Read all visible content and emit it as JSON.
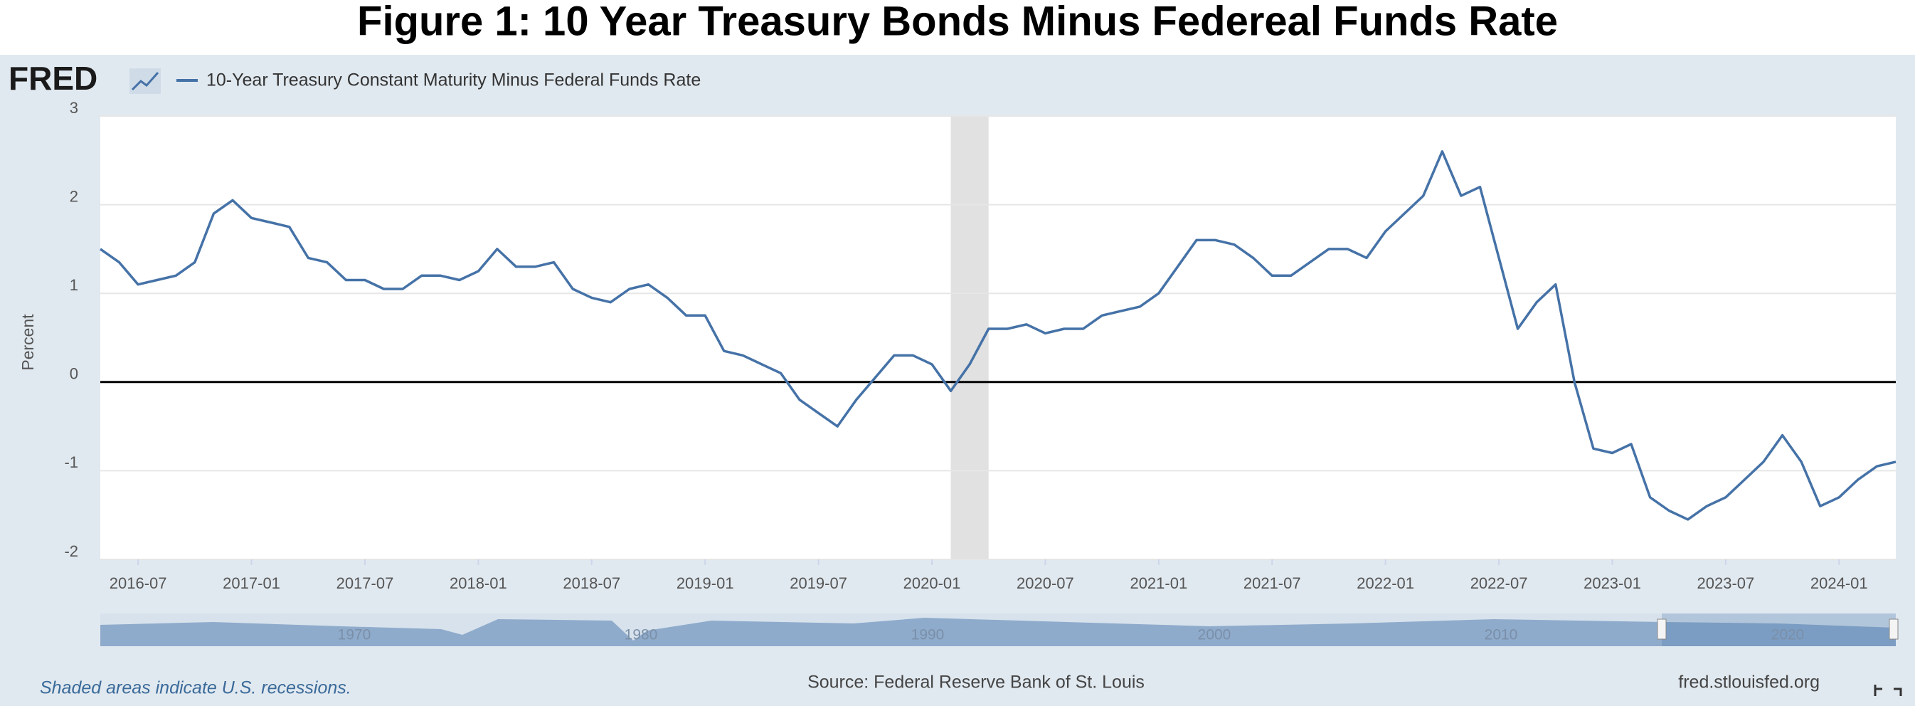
{
  "chart_data": {
    "type": "line",
    "title": "Figure 1: 10 Year Treasury Bonds Minus Federeal Funds Rate",
    "logo": "FRED",
    "y_label": "Percent",
    "legend_position": "top-left",
    "grid": true,
    "zero_line": true,
    "ylim": [
      -2,
      3
    ],
    "yticks": [
      -2,
      -1,
      0,
      1,
      2,
      3
    ],
    "xlim": [
      "2016-05",
      "2024-04"
    ],
    "xticks": [
      "2016-07",
      "2017-01",
      "2017-07",
      "2018-01",
      "2018-07",
      "2019-01",
      "2019-07",
      "2020-01",
      "2020-07",
      "2021-01",
      "2021-07",
      "2022-01",
      "2022-07",
      "2023-01",
      "2023-07",
      "2024-01"
    ],
    "recessions": [
      {
        "start": "2020-02",
        "end": "2020-04"
      }
    ],
    "navigator_labels": [
      1970,
      1980,
      1990,
      2000,
      2010,
      2020
    ],
    "x": [
      "2016-05",
      "2016-06",
      "2016-07",
      "2016-08",
      "2016-09",
      "2016-10",
      "2016-11",
      "2016-12",
      "2017-01",
      "2017-02",
      "2017-03",
      "2017-04",
      "2017-05",
      "2017-06",
      "2017-07",
      "2017-08",
      "2017-09",
      "2017-10",
      "2017-11",
      "2017-12",
      "2018-01",
      "2018-02",
      "2018-03",
      "2018-04",
      "2018-05",
      "2018-06",
      "2018-07",
      "2018-08",
      "2018-09",
      "2018-10",
      "2018-11",
      "2018-12",
      "2019-01",
      "2019-02",
      "2019-03",
      "2019-04",
      "2019-05",
      "2019-06",
      "2019-07",
      "2019-08",
      "2019-09",
      "2019-10",
      "2019-11",
      "2019-12",
      "2020-01",
      "2020-02",
      "2020-03",
      "2020-04",
      "2020-05",
      "2020-06",
      "2020-07",
      "2020-08",
      "2020-09",
      "2020-10",
      "2020-11",
      "2020-12",
      "2021-01",
      "2021-02",
      "2021-03",
      "2021-04",
      "2021-05",
      "2021-06",
      "2021-07",
      "2021-08",
      "2021-09",
      "2021-10",
      "2021-11",
      "2021-12",
      "2022-01",
      "2022-02",
      "2022-03",
      "2022-04",
      "2022-05",
      "2022-06",
      "2022-07",
      "2022-08",
      "2022-09",
      "2022-10",
      "2022-11",
      "2022-12",
      "2023-01",
      "2023-02",
      "2023-03",
      "2023-04",
      "2023-05",
      "2023-06",
      "2023-07",
      "2023-08",
      "2023-09",
      "2023-10",
      "2023-11",
      "2023-12",
      "2024-01",
      "2024-02",
      "2024-03",
      "2024-04"
    ],
    "series": [
      {
        "name": "10-Year Treasury Constant Maturity Minus Federal Funds Rate",
        "color": "#4572a7",
        "values": [
          1.5,
          1.35,
          1.1,
          1.15,
          1.2,
          1.35,
          1.9,
          2.05,
          1.85,
          1.8,
          1.75,
          1.4,
          1.35,
          1.15,
          1.15,
          1.05,
          1.05,
          1.2,
          1.2,
          1.15,
          1.25,
          1.5,
          1.3,
          1.3,
          1.35,
          1.05,
          0.95,
          0.9,
          1.05,
          1.1,
          0.95,
          0.75,
          0.75,
          0.35,
          0.3,
          0.2,
          0.1,
          -0.2,
          -0.35,
          -0.5,
          -0.2,
          0.05,
          0.3,
          0.3,
          0.2,
          -0.1,
          0.2,
          0.6,
          0.6,
          0.65,
          0.55,
          0.6,
          0.6,
          0.75,
          0.8,
          0.85,
          1.0,
          1.3,
          1.6,
          1.6,
          1.55,
          1.4,
          1.2,
          1.2,
          1.35,
          1.5,
          1.5,
          1.4,
          1.7,
          1.9,
          2.1,
          2.6,
          2.1,
          2.2,
          1.4,
          0.6,
          0.9,
          1.1,
          0.0,
          -0.75,
          -0.8,
          -0.7,
          -1.3,
          -1.45,
          -1.55,
          -1.4,
          -1.3,
          -1.1,
          -0.9,
          -0.6,
          -0.9,
          -1.4,
          -1.3,
          -1.1,
          -0.95,
          -0.9
        ]
      }
    ],
    "recession_note": "Shaded areas indicate U.S. recessions.",
    "source": "Source: Federal Reserve Bank of St. Louis",
    "site": "fred.stlouisfed.org"
  }
}
